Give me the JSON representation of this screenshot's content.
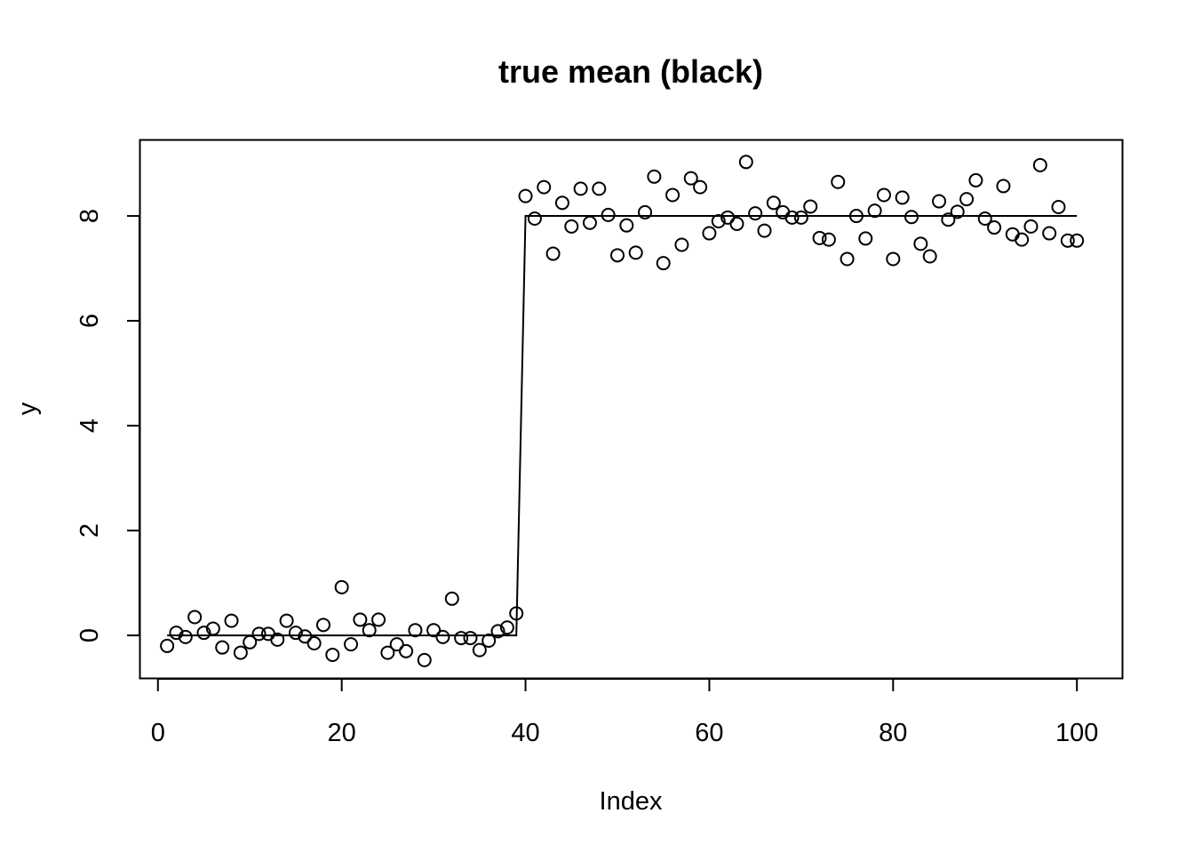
{
  "chart_data": {
    "type": "scatter",
    "title": "true mean (black)",
    "xlabel": "Index",
    "ylabel": "y",
    "xlim": [
      -1.96,
      104.96
    ],
    "ylim": [
      -0.82,
      9.45
    ],
    "x_ticks": [
      0,
      20,
      40,
      60,
      80,
      100
    ],
    "y_ticks": [
      0,
      2,
      4,
      6,
      8
    ],
    "grid": false,
    "legend": "none",
    "colors": {
      "points": "#000000",
      "line": "#000000",
      "frame": "#000000"
    },
    "series": [
      {
        "kind": "points",
        "marker": "open-circle",
        "x": [
          1,
          2,
          3,
          4,
          5,
          6,
          7,
          8,
          9,
          10,
          11,
          12,
          13,
          14,
          15,
          16,
          17,
          18,
          19,
          20,
          21,
          22,
          23,
          24,
          25,
          26,
          27,
          28,
          29,
          30,
          31,
          32,
          33,
          34,
          35,
          36,
          37,
          38,
          39,
          40,
          41,
          42,
          43,
          44,
          45,
          46,
          47,
          48,
          49,
          50,
          51,
          52,
          53,
          54,
          55,
          56,
          57,
          58,
          59,
          60,
          61,
          62,
          63,
          64,
          65,
          66,
          67,
          68,
          69,
          70,
          71,
          72,
          73,
          74,
          75,
          76,
          77,
          78,
          79,
          80,
          81,
          82,
          83,
          84,
          85,
          86,
          87,
          88,
          89,
          90,
          91,
          92,
          93,
          94,
          95,
          96,
          97,
          98,
          99,
          100
        ],
        "y": [
          -0.2,
          0.05,
          -0.03,
          0.35,
          0.05,
          0.13,
          -0.23,
          0.28,
          -0.33,
          -0.13,
          0.03,
          0.03,
          -0.08,
          0.28,
          0.05,
          -0.02,
          -0.15,
          0.2,
          -0.37,
          0.92,
          -0.17,
          0.3,
          0.1,
          0.3,
          -0.33,
          -0.17,
          -0.3,
          0.1,
          -0.47,
          0.1,
          -0.03,
          0.7,
          -0.05,
          -0.05,
          -0.28,
          -0.1,
          0.08,
          0.15,
          0.42,
          8.38,
          7.95,
          8.55,
          7.28,
          8.25,
          7.8,
          8.52,
          7.87,
          8.52,
          8.02,
          7.25,
          7.82,
          7.3,
          8.07,
          8.75,
          7.1,
          8.4,
          7.45,
          8.72,
          8.55,
          7.67,
          7.9,
          7.97,
          7.85,
          9.03,
          8.05,
          7.72,
          8.25,
          8.07,
          7.97,
          7.97,
          8.18,
          7.58,
          7.55,
          8.65,
          7.18,
          8.0,
          7.57,
          8.1,
          8.4,
          7.18,
          8.35,
          7.98,
          7.47,
          7.23,
          8.28,
          7.93,
          8.08,
          8.32,
          8.68,
          7.95,
          7.78,
          8.57,
          7.65,
          7.55,
          7.8,
          8.97,
          7.67,
          8.17,
          7.53,
          7.53
        ]
      },
      {
        "kind": "line",
        "name": "true mean",
        "x": [
          1,
          39,
          40,
          100
        ],
        "y": [
          0,
          0,
          8,
          8
        ]
      }
    ]
  }
}
